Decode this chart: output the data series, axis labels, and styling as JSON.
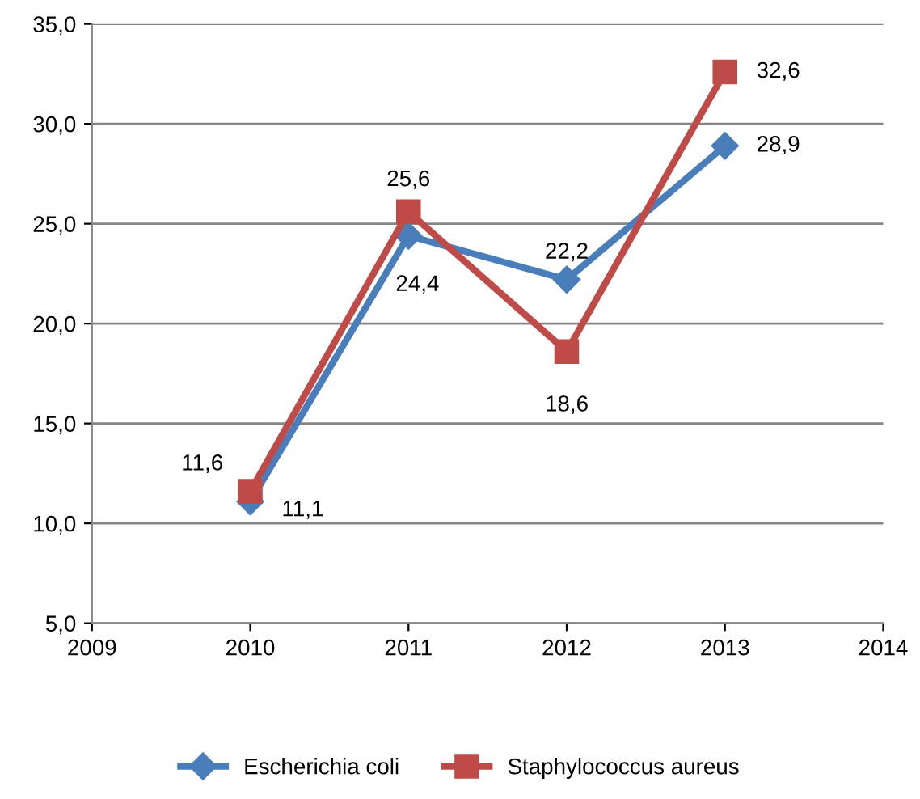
{
  "chart_data": {
    "type": "line",
    "x": [
      2010,
      2011,
      2012,
      2013
    ],
    "series": [
      {
        "name": "Escherichia coli",
        "color": "#4a7ebb",
        "marker": "diamond",
        "values": [
          11.1,
          24.4,
          22.2,
          28.9
        ],
        "value_labels": [
          "11,1",
          "24,4",
          "22,2",
          "28,9"
        ]
      },
      {
        "name": "Staphylococcus aureus",
        "color": "#be4b48",
        "marker": "square",
        "values": [
          11.6,
          25.6,
          18.6,
          32.6
        ],
        "value_labels": [
          "11,6",
          "25,6",
          "18,6",
          "32,6"
        ]
      }
    ],
    "xlim": [
      2009,
      2014
    ],
    "xticks": [
      2009,
      2010,
      2011,
      2012,
      2013,
      2014
    ],
    "ylim": [
      5,
      35
    ],
    "yticks": [
      {
        "value": 5,
        "label": "5,0"
      },
      {
        "value": 10,
        "label": "10,0"
      },
      {
        "value": 15,
        "label": "15,0"
      },
      {
        "value": 20,
        "label": "20,0"
      },
      {
        "value": 25,
        "label": "25,0"
      },
      {
        "value": 30,
        "label": "30,0"
      },
      {
        "value": 35,
        "label": "35,0"
      }
    ],
    "grid": "y",
    "legend": "bottom",
    "line_style": "solid"
  }
}
